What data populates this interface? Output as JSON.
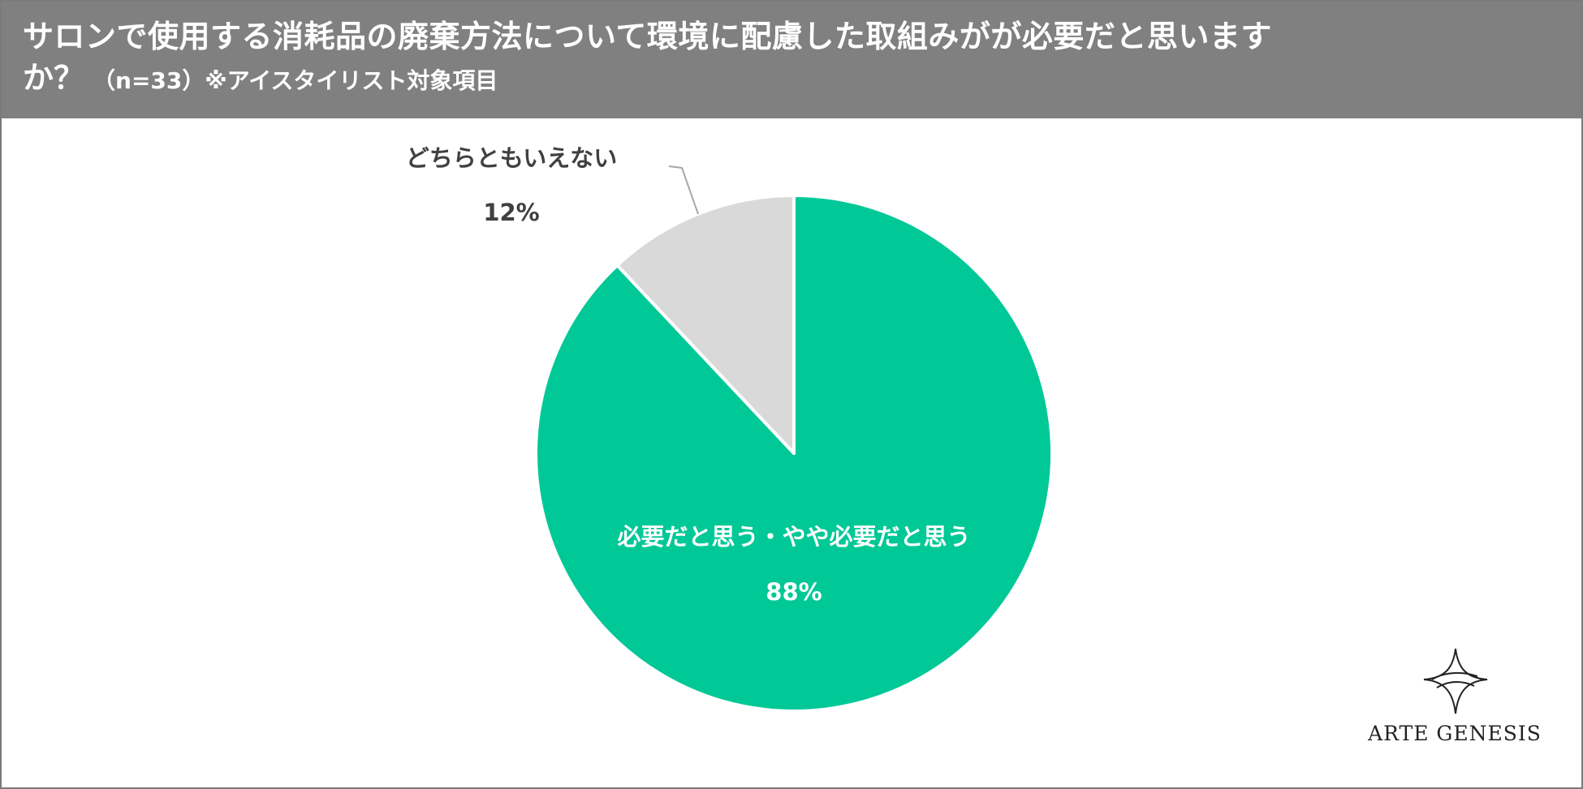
{
  "header": {
    "title_line1": "サロンで使用する消耗品の廃棄方法について環境に配慮した取組みがが必要だと思います",
    "title_line2": "か？",
    "note": "（n=33）※アイスタイリスト対象項目"
  },
  "chart_data": {
    "type": "pie",
    "title": "サロンで使用する消耗品の廃棄方法について環境に配慮した取組みがが必要だと思いますか？",
    "n": 33,
    "slices": [
      {
        "label": "必要だと思う・やや必要だと思う",
        "value": 88,
        "display": "88%",
        "color": "#00C896"
      },
      {
        "label": "どちらともいえない",
        "value": 12,
        "display": "12%",
        "color": "#D9D9D9"
      }
    ]
  },
  "logo": {
    "text": "ARTE GENESIS"
  }
}
